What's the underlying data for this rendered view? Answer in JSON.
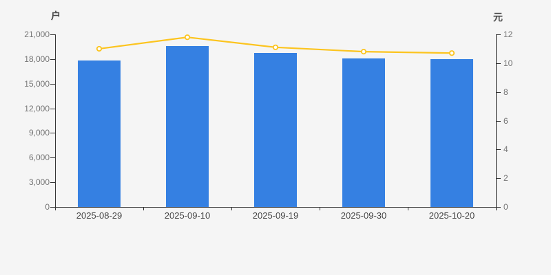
{
  "chart_data": {
    "type": "bar",
    "title": "",
    "categories": [
      "2025-08-29",
      "2025-09-10",
      "2025-09-19",
      "2025-09-30",
      "2025-10-20"
    ],
    "series": [
      {
        "name": "holders-bar-series",
        "type": "bar",
        "y_axis": "left",
        "values": [
          17800,
          19600,
          18700,
          18100,
          18000
        ]
      },
      {
        "name": "price-line-series",
        "type": "line",
        "y_axis": "right",
        "values": [
          11.0,
          11.8,
          11.1,
          10.8,
          10.7
        ],
        "marker": "hollow-circle"
      }
    ],
    "left_axis": {
      "unit": "户",
      "min": 0,
      "max": 21000,
      "ticks": [
        0,
        3000,
        6000,
        9000,
        12000,
        15000,
        18000,
        21000
      ],
      "tick_labels": [
        "0",
        "3,000",
        "6,000",
        "9,000",
        "12,000",
        "15,000",
        "18,000",
        "21,000"
      ]
    },
    "right_axis": {
      "unit": "元",
      "min": 0,
      "max": 12,
      "ticks": [
        0,
        2,
        4,
        6,
        8,
        10,
        12
      ],
      "tick_labels": [
        "0",
        "2",
        "4",
        "6",
        "8",
        "10",
        "12"
      ]
    },
    "legend": "none",
    "grid": "off",
    "colors": {
      "bar": "#3580e2",
      "line": "#fcc41e",
      "marker_fill": "#ffffff",
      "axis": "#333333",
      "y_tick_label": "#767676",
      "x_tick_label": "#454545",
      "background": "#f5f5f5"
    }
  }
}
